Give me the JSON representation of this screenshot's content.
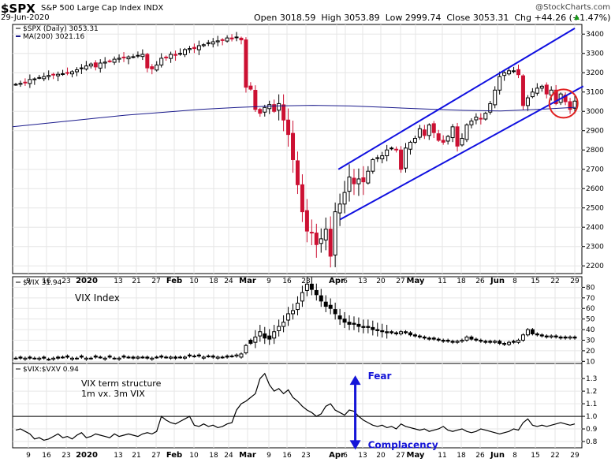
{
  "header": {
    "symbol": "$SPX",
    "name": "S&P 500 Large Cap Index",
    "exchange": "INDX",
    "date": "29-Jun-2020",
    "watermark": "@StockCharts.com",
    "open_label": "Open",
    "open": "3018.59",
    "high_label": "High",
    "high": "3053.89",
    "low_label": "Low",
    "low": "2999.74",
    "close_label": "Close",
    "close": "3053.31",
    "chg_label": "Chg",
    "chg": "+44.26 (+1.47%)"
  },
  "colors": {
    "up": "#000000",
    "down": "#cc1133",
    "ma": "#1b1b8c",
    "channel": "#1010e0",
    "circle": "#e02020",
    "arrow": "#1515d8"
  },
  "x_axis_labels": [
    {
      "t": "9",
      "bold": false
    },
    {
      "t": "16",
      "bold": false
    },
    {
      "t": "23",
      "bold": false
    },
    {
      "t": "2020",
      "bold": true
    },
    {
      "t": "13",
      "bold": false
    },
    {
      "t": "21",
      "bold": false
    },
    {
      "t": "27",
      "bold": false
    },
    {
      "t": "Feb",
      "bold": true
    },
    {
      "t": "10",
      "bold": false
    },
    {
      "t": "18",
      "bold": false
    },
    {
      "t": "24",
      "bold": false
    },
    {
      "t": "Mar",
      "bold": true
    },
    {
      "t": "9",
      "bold": false
    },
    {
      "t": "16",
      "bold": false
    },
    {
      "t": "23",
      "bold": false
    },
    {
      "t": "Apr",
      "bold": true
    },
    {
      "t": "6",
      "bold": false
    },
    {
      "t": "13",
      "bold": false
    },
    {
      "t": "20",
      "bold": false
    },
    {
      "t": "27",
      "bold": false
    },
    {
      "t": "May",
      "bold": true
    },
    {
      "t": "11",
      "bold": false
    },
    {
      "t": "18",
      "bold": false
    },
    {
      "t": "26",
      "bold": false
    },
    {
      "t": "Jun",
      "bold": true
    },
    {
      "t": "8",
      "bold": false
    },
    {
      "t": "15",
      "bold": false
    },
    {
      "t": "22",
      "bold": false
    },
    {
      "t": "29",
      "bold": false
    }
  ],
  "chart_data": [
    {
      "type": "candlestick",
      "panel": "price",
      "legend": [
        "$SPX (Daily) 3053.31",
        "MA(200) 3021.16"
      ],
      "ylim": [
        2160,
        3450
      ],
      "y_ticks": [
        2200,
        2300,
        2400,
        2500,
        2600,
        2700,
        2800,
        2900,
        3000,
        3100,
        3200,
        3300,
        3400
      ],
      "y_tick_labels": [
        "2200",
        "2300",
        "2400",
        "2500",
        "2600",
        "2700",
        "2800",
        "2900",
        "3000",
        "3100",
        "3200",
        "3300",
        "3400"
      ],
      "close_start": 3140,
      "closes": [
        3140,
        3145,
        3150,
        3165,
        3168,
        3175,
        3180,
        3186,
        3190,
        3192,
        3195,
        3200,
        3205,
        3215,
        3225,
        3235,
        3245,
        3230,
        3250,
        3255,
        3260,
        3270,
        3275,
        3278,
        3282,
        3283,
        3290,
        3295,
        3225,
        3220,
        3240,
        3275,
        3280,
        3295,
        3290,
        3300,
        3320,
        3325,
        3325,
        3340,
        3345,
        3355,
        3360,
        3365,
        3370,
        3380,
        3375,
        3385,
        3370,
        3125,
        3115,
        3010,
        2990,
        3020,
        3035,
        3000,
        3040,
        2955,
        2880,
        2750,
        2620,
        2480,
        2380,
        2370,
        2310,
        2340,
        2390,
        2250,
        2480,
        2520,
        2580,
        2660,
        2625,
        2650,
        2635,
        2690,
        2750,
        2760,
        2770,
        2800,
        2810,
        2800,
        2700,
        2810,
        2840,
        2860,
        2910,
        2875,
        2930,
        2890,
        2850,
        2840,
        2870,
        2920,
        2820,
        2860,
        2930,
        2950,
        2970,
        2960,
        2990,
        3040,
        3110,
        3180,
        3200,
        3210,
        3210,
        3190,
        3030,
        3070,
        3100,
        3120,
        3130,
        3090,
        3110,
        3040,
        3090,
        3050,
        3010,
        3053
      ],
      "ma200": [
        2920,
        2940,
        2960,
        2980,
        2995,
        3010,
        3020,
        3028,
        3031,
        3028,
        3020,
        3012,
        3005,
        3002,
        3010,
        3021
      ],
      "channel_upper": {
        "from": {
          "date": "2020-04-02",
          "value": 2700
        },
        "to": {
          "date": "2020-06-29",
          "value": 3430
        }
      },
      "channel_lower": {
        "from": {
          "date": "2020-04-03",
          "value": 2440
        },
        "to": {
          "date": "2020-07-02",
          "value": 3130
        }
      },
      "highlight_circle": {
        "date": "2020-06-25",
        "value": 3040
      }
    },
    {
      "type": "candlestick",
      "panel": "vix",
      "legend": "$VIX 31.94",
      "annotation": "VIX Index",
      "ylim": [
        8,
        90
      ],
      "y_ticks": [
        10,
        20,
        30,
        40,
        50,
        60,
        70,
        80
      ],
      "y_tick_labels": [
        "10",
        "20",
        "30",
        "40",
        "50",
        "60",
        "70",
        "80"
      ],
      "closes": [
        13,
        13,
        13,
        13,
        13,
        13,
        13,
        12,
        13,
        13,
        14,
        14,
        13,
        13,
        14,
        13,
        13,
        14,
        14,
        13,
        14,
        13,
        13,
        14,
        14,
        13,
        14,
        14,
        13,
        13,
        14,
        14,
        14,
        14,
        13,
        14,
        14,
        15,
        15,
        15,
        14,
        15,
        14,
        14,
        14,
        14,
        15,
        16,
        17,
        25,
        27,
        33,
        38,
        32,
        31,
        38,
        43,
        47,
        55,
        58,
        65,
        75,
        83,
        78,
        73,
        67,
        62,
        60,
        55,
        50,
        47,
        45,
        45,
        43,
        42,
        42,
        40,
        39,
        38,
        37,
        37,
        36,
        38,
        37,
        35,
        34,
        33,
        32,
        31,
        31,
        30,
        29,
        29,
        28,
        29,
        30,
        33,
        31,
        30,
        29,
        28,
        28,
        29,
        27,
        26,
        28,
        28,
        30,
        35,
        40,
        36,
        35,
        34,
        33,
        34,
        33,
        32,
        32,
        33,
        32
      ],
      "opens_offset": [
        0,
        1,
        -1,
        1,
        0,
        -1,
        1,
        0,
        -1,
        1,
        0,
        1,
        -1,
        0,
        1,
        -1,
        0,
        1,
        0,
        -1,
        1,
        0,
        -1,
        1,
        0,
        1,
        -1,
        0,
        1,
        -1,
        0,
        1,
        0,
        -1,
        1,
        0,
        -1,
        1,
        0,
        1,
        -1,
        0,
        1,
        -1,
        0,
        1,
        0,
        -1,
        -3,
        -7,
        3,
        -5,
        -4,
        4,
        3,
        -6,
        -4,
        -4,
        -6,
        -3,
        -6,
        -8,
        -6,
        5,
        4,
        5,
        4,
        3,
        4,
        3,
        3,
        2,
        1,
        2,
        1,
        1,
        2,
        1,
        1,
        1,
        1,
        1,
        -2,
        1,
        2,
        1,
        1,
        1,
        1,
        1,
        1,
        1,
        1,
        1,
        -1,
        -1,
        -3,
        2,
        1,
        1,
        1,
        1,
        -1,
        2,
        1,
        -2,
        1,
        -2,
        -5,
        -5,
        4,
        1,
        1,
        1,
        -1,
        1,
        1,
        1,
        -1,
        1
      ]
    },
    {
      "type": "line",
      "panel": "ratio",
      "legend": "$VIX:$VXV 0.94",
      "annotation": [
        "VIX term structure",
        "1m vx. 3m VIX"
      ],
      "ylim": [
        0.75,
        1.42
      ],
      "y_ticks": [
        0.8,
        0.9,
        1.0,
        1.1,
        1.2,
        1.3
      ],
      "y_tick_labels": [
        "0.8",
        "0.9",
        "1.0",
        "1.1",
        "1.2",
        "1.3"
      ],
      "reference_line": 1.0,
      "values": [
        0.89,
        0.9,
        0.88,
        0.86,
        0.82,
        0.83,
        0.81,
        0.82,
        0.84,
        0.86,
        0.83,
        0.84,
        0.82,
        0.85,
        0.87,
        0.83,
        0.84,
        0.86,
        0.85,
        0.84,
        0.83,
        0.86,
        0.84,
        0.85,
        0.86,
        0.85,
        0.84,
        0.86,
        0.87,
        0.86,
        0.88,
        1.0,
        0.97,
        0.95,
        0.94,
        0.96,
        0.98,
        1.0,
        0.93,
        0.92,
        0.94,
        0.92,
        0.93,
        0.91,
        0.92,
        0.94,
        0.95,
        1.05,
        1.1,
        1.12,
        1.15,
        1.18,
        1.3,
        1.34,
        1.25,
        1.2,
        1.22,
        1.18,
        1.21,
        1.15,
        1.12,
        1.08,
        1.05,
        1.03,
        1.0,
        1.02,
        1.08,
        1.1,
        1.05,
        1.03,
        1.01,
        1.05,
        1.04,
        1.0,
        0.97,
        0.95,
        0.93,
        0.92,
        0.93,
        0.91,
        0.92,
        0.9,
        0.94,
        0.92,
        0.91,
        0.9,
        0.89,
        0.9,
        0.88,
        0.89,
        0.9,
        0.92,
        0.89,
        0.88,
        0.89,
        0.9,
        0.88,
        0.87,
        0.88,
        0.9,
        0.89,
        0.88,
        0.87,
        0.86,
        0.87,
        0.88,
        0.9,
        0.89,
        0.95,
        0.98,
        0.93,
        0.92,
        0.93,
        0.92,
        0.93,
        0.94,
        0.95,
        0.94,
        0.93,
        0.94
      ],
      "arrow": {
        "top_label": "Fear",
        "bottom_label": "Complacency",
        "from": 1.3,
        "to": 0.76,
        "date": "2020-04-10"
      }
    }
  ]
}
